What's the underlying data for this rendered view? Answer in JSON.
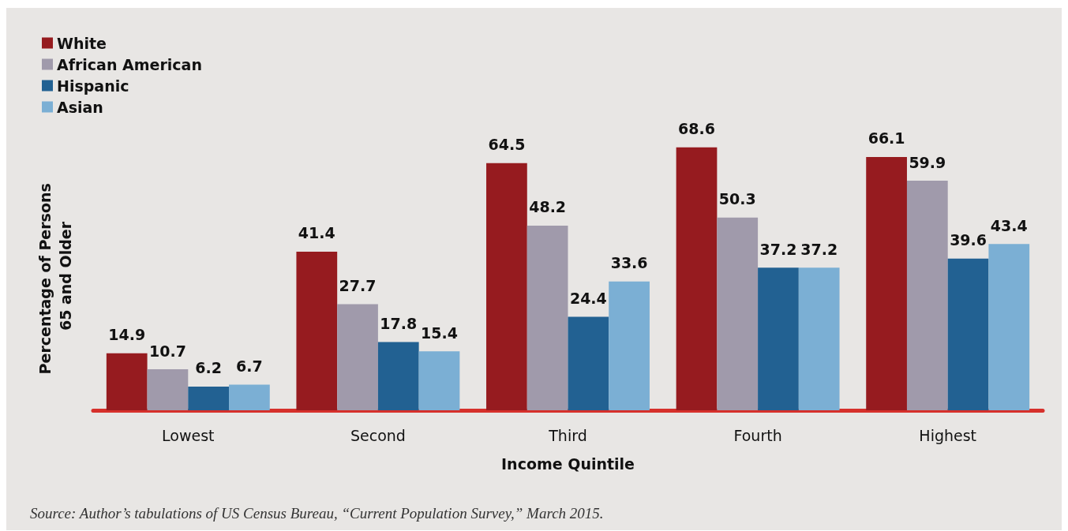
{
  "chart_data": {
    "type": "bar",
    "xlabel": "Income Quintile",
    "ylabel": "Percentage of Persons 65 and Older",
    "categories": [
      "Lowest",
      "Second",
      "Third",
      "Fourth",
      "Highest"
    ],
    "series": [
      {
        "name": "White",
        "color": "#961b1f",
        "values": [
          14.9,
          41.4,
          64.5,
          68.6,
          66.1
        ]
      },
      {
        "name": "African American",
        "color": "#a09aab",
        "values": [
          10.7,
          27.7,
          48.2,
          50.3,
          59.9
        ]
      },
      {
        "name": "Hispanic",
        "color": "#226192",
        "values": [
          6.2,
          17.8,
          24.4,
          37.2,
          39.6
        ]
      },
      {
        "name": "Asian",
        "color": "#7bafd4",
        "values": [
          6.7,
          15.4,
          33.6,
          37.2,
          43.4
        ]
      }
    ],
    "data_labels": true,
    "legend": "top left",
    "grid": false,
    "annotations": [
      "Source: Author’s tabulations of US Census Bureau, “Current Population Survey,” March 2015."
    ]
  }
}
